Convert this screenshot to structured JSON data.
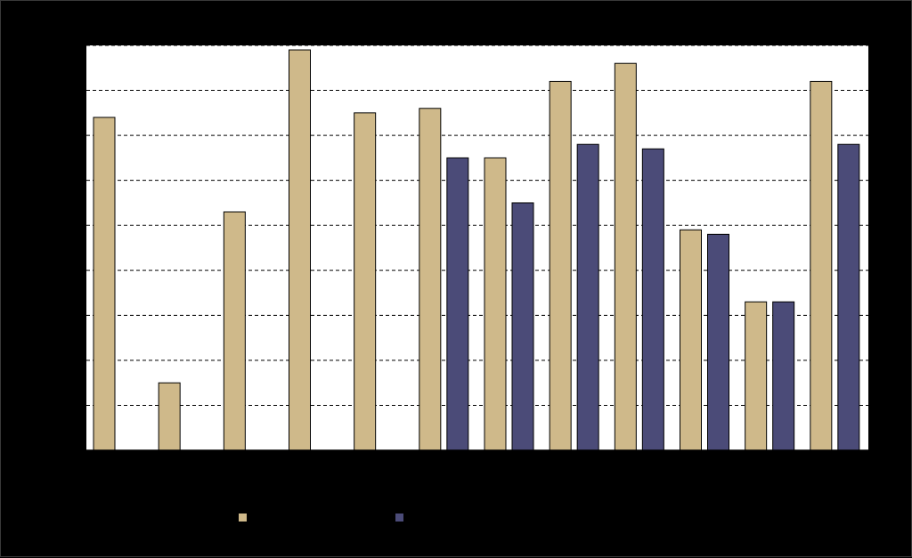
{
  "chart_data": {
    "type": "bar",
    "title": "",
    "xlabel": "",
    "ylabel": "",
    "ylim": [
      0,
      9
    ],
    "y_step": 1,
    "grid": true,
    "legend_position": "bottom",
    "categories": [
      "",
      "",
      "",
      "",
      "",
      "",
      "",
      "",
      "",
      "",
      "",
      ""
    ],
    "series": [
      {
        "name": "",
        "color": "#cfb98a",
        "values": [
          7.4,
          1.5,
          5.3,
          8.9,
          7.5,
          7.6,
          6.5,
          8.2,
          8.6,
          4.9,
          3.3,
          8.2
        ]
      },
      {
        "name": "",
        "color": "#4b4b78",
        "values": [
          null,
          null,
          null,
          null,
          null,
          6.5,
          5.5,
          6.8,
          6.7,
          4.8,
          3.3,
          6.8
        ]
      }
    ],
    "colors": {
      "background": "#000000",
      "plot_area": "#ffffff",
      "gridline": "#000000",
      "bar_outline": "#000000"
    }
  }
}
